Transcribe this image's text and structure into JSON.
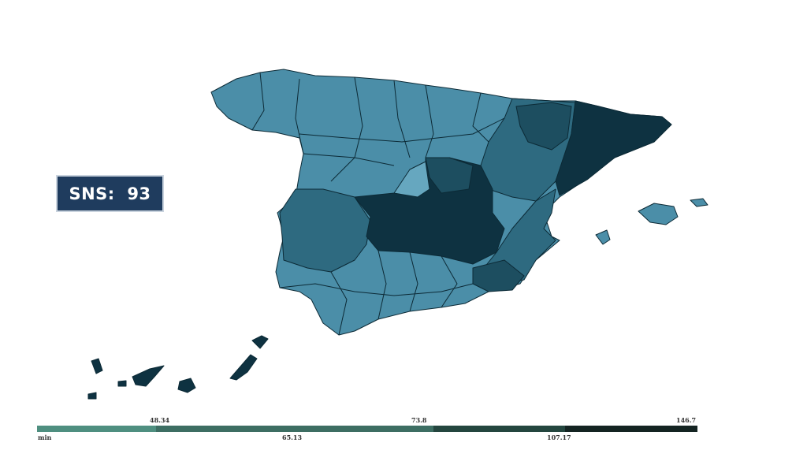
{
  "badge": {
    "label": "SNS:",
    "value": "93",
    "color": "#1f3c5e"
  },
  "map": {
    "region": "Spain provinces",
    "colors": {
      "lightest": "#66a7bf",
      "light": "#4b8ea8",
      "medium": "#2e6a80",
      "dark": "#1d4e60",
      "darkest": "#0e3241"
    }
  },
  "legend": {
    "top_labels": [
      "48.34",
      "73.8",
      "146.7"
    ],
    "bottom_labels": [
      "min",
      "65.13",
      "107.17"
    ],
    "bins": [
      {
        "color": "#4f8f80",
        "share": 0.18
      },
      {
        "color": "#3d6e63",
        "share": 0.42
      },
      {
        "color": "#24463f",
        "share": 0.2
      },
      {
        "color": "#142422",
        "share": 0.2
      }
    ]
  }
}
